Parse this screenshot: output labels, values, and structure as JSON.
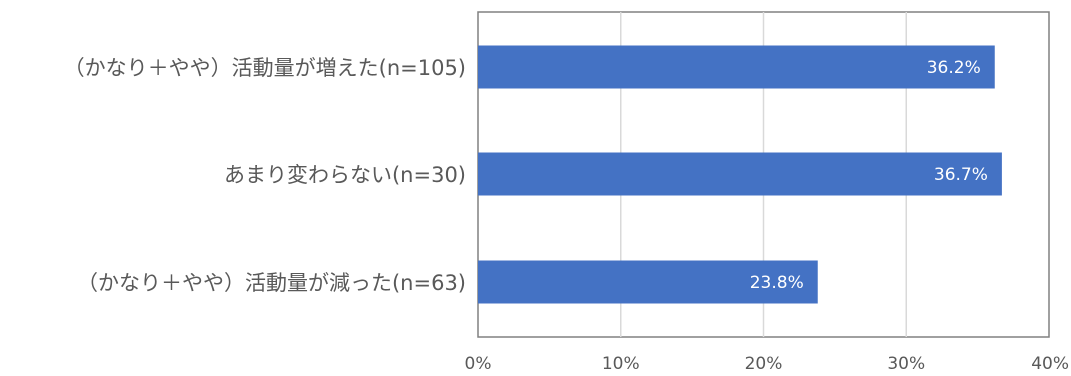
{
  "chart_data": {
    "type": "bar",
    "orientation": "horizontal",
    "categories": [
      "（かなり＋やや）活動量が増えた(n=105)",
      "あまり変わらない(n=30)",
      "（かなり＋やや）活動量が減った(n=63)"
    ],
    "values": [
      36.2,
      36.7,
      23.8
    ],
    "data_labels": [
      "36.2%",
      "36.7%",
      "23.8%"
    ],
    "x_ticks": [
      "0%",
      "10%",
      "20%",
      "30%",
      "40%"
    ],
    "xlim": [
      0,
      40
    ],
    "unit": "%",
    "grid": true,
    "bar_color": "#4472C4",
    "gridline_color": "#D9D9D9",
    "frame_color": "#808080",
    "text_color": "#595959"
  }
}
